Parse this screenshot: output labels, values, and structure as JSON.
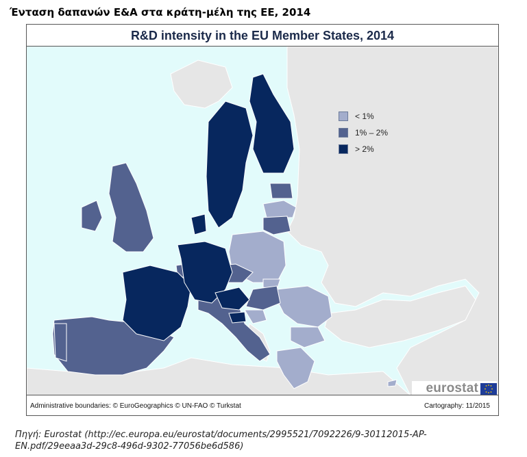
{
  "page_title": "Ένταση δαπανών Ε&Α στα κράτη-μέλη της ΕΕ, 2014",
  "map": {
    "title": "R&D intensity in the EU Member States, 2014",
    "legend": [
      {
        "label": "< 1%",
        "color": "#a3adcc"
      },
      {
        "label": "1% – 2%",
        "color": "#53628f"
      },
      {
        "label": "> 2%",
        "color": "#07275e"
      }
    ],
    "logo_text": "eurostat",
    "footer_left": "Administrative boundaries: © EuroGeographics © UN-FAO © Turkstat",
    "footer_right": "Cartography: 11/2015",
    "colors": {
      "sea": "#e2fbfb",
      "non_eu": "#e6e6e6",
      "low": "#a3adcc",
      "mid": "#53628f",
      "high": "#07275e"
    }
  },
  "source": {
    "prefix": "Πηγή: Eurostat (",
    "link": "http://ec.europa.eu/eurostat/documents/2995521/7092226/9-30112015-AP-EN.pdf/29eeaa3d-29c8-496d-9302-77056be6d586",
    "suffix": ")"
  }
}
